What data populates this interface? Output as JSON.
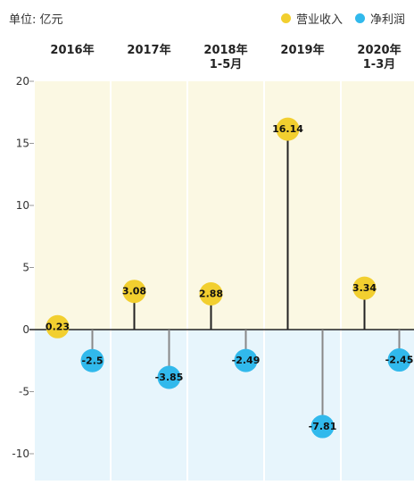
{
  "unit_label": "单位: 亿元",
  "legend": [
    {
      "label": "营业收入",
      "color": "#F2CF2F"
    },
    {
      "label": "净利润",
      "color": "#31B9EC"
    }
  ],
  "chart_data": {
    "type": "lollipop",
    "categories": [
      {
        "lines": [
          "2016年"
        ]
      },
      {
        "lines": [
          "2017年"
        ]
      },
      {
        "lines": [
          "2018年",
          "1-5月"
        ]
      },
      {
        "lines": [
          "2019年"
        ]
      },
      {
        "lines": [
          "2020年",
          "1-3月"
        ]
      }
    ],
    "series": [
      {
        "name": "营业收入",
        "values": [
          0.23,
          3.08,
          2.88,
          16.14,
          3.34
        ],
        "labels": [
          "0.23",
          "3.08",
          "2.88",
          "16.14",
          "3.34"
        ],
        "color": "#F2CF2F",
        "stem_color": "#222222"
      },
      {
        "name": "净利润",
        "values": [
          -2.5,
          -3.85,
          -2.49,
          -7.81,
          -2.45
        ],
        "labels": [
          "-2.5",
          "-3.85",
          "-2.49",
          "-7.81",
          "-2.45"
        ],
        "color": "#31B9EC",
        "stem_color": "#888888"
      }
    ],
    "yticks": [
      "20",
      "15",
      "10",
      "5",
      "0",
      "-5",
      "-10"
    ],
    "ylim": [
      -10,
      20
    ],
    "bg_positive": "#FBF8E3",
    "bg_negative": "#E7F5FC"
  }
}
